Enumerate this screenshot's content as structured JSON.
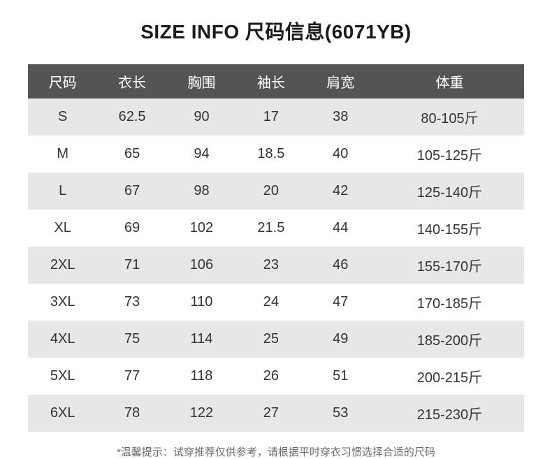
{
  "title": "SIZE INFO 尺码信息(6071YB)",
  "table": {
    "type": "table",
    "header_bg": "#545454",
    "header_fg": "#ffffff",
    "row_odd_bg": "#e7e7e7",
    "row_even_bg": "#ffffff",
    "cell_fg": "#333333",
    "header_fontsize": 20,
    "cell_fontsize": 20,
    "columns": [
      "尺码",
      "衣长",
      "胸围",
      "袖长",
      "肩宽",
      "体重"
    ],
    "col_widths_pct": [
      14,
      14,
      14,
      14,
      14,
      30
    ],
    "rows": [
      [
        "S",
        "62.5",
        "90",
        "17",
        "38",
        "80-105斤"
      ],
      [
        "M",
        "65",
        "94",
        "18.5",
        "40",
        "105-125斤"
      ],
      [
        "L",
        "67",
        "98",
        "20",
        "42",
        "125-140斤"
      ],
      [
        "XL",
        "69",
        "102",
        "21.5",
        "44",
        "140-155斤"
      ],
      [
        "2XL",
        "71",
        "106",
        "23",
        "46",
        "155-170斤"
      ],
      [
        "3XL",
        "73",
        "110",
        "24",
        "47",
        "170-185斤"
      ],
      [
        "4XL",
        "75",
        "114",
        "25",
        "49",
        "185-200斤"
      ],
      [
        "5XL",
        "77",
        "118",
        "26",
        "51",
        "200-215斤"
      ],
      [
        "6XL",
        "78",
        "122",
        "27",
        "53",
        "215-230斤"
      ]
    ]
  },
  "footer_note": "*温馨提示：试穿推荐仅供参考，请根据平时穿衣习惯选择合适的尺码"
}
